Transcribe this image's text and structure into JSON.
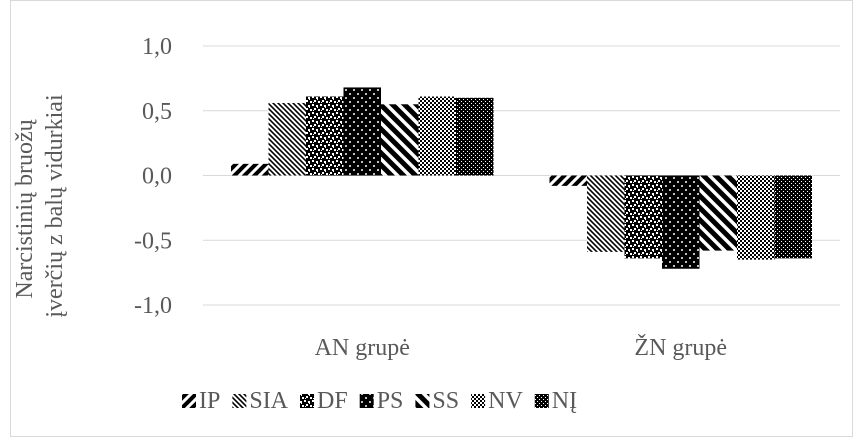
{
  "chart_data": {
    "type": "bar",
    "title": "",
    "xlabel": "",
    "ylabel": "Narcistinių bruožų įverčių z balų vidurkiai",
    "ylabel_lines": [
      "Narcistinių bruožų",
      "įverčių z balų vidurkiai"
    ],
    "ylim": [
      -1.0,
      1.0
    ],
    "yticks": [
      "1,0",
      "0,5",
      "0,0",
      "-0,5",
      "-1,0"
    ],
    "ytick_values": [
      1.0,
      0.5,
      0.0,
      -0.5,
      -1.0
    ],
    "grid": true,
    "legend_position": "bottom",
    "categories": [
      "AN grupė",
      "ŽN grupė"
    ],
    "series": [
      {
        "name": "IP",
        "values": [
          0.09,
          -0.08
        ],
        "pattern": "wide-diagonal"
      },
      {
        "name": "SIA",
        "values": [
          0.56,
          -0.59
        ],
        "pattern": "dense-diagonal"
      },
      {
        "name": "DF",
        "values": [
          0.61,
          -0.64
        ],
        "pattern": "confetti"
      },
      {
        "name": "PS",
        "values": [
          0.68,
          -0.72
        ],
        "pattern": "large-dots"
      },
      {
        "name": "SS",
        "values": [
          0.55,
          -0.58
        ],
        "pattern": "wide-upward-diagonal"
      },
      {
        "name": "NV",
        "values": [
          0.61,
          -0.65
        ],
        "pattern": "checker"
      },
      {
        "name": "NĮ",
        "values": [
          0.6,
          -0.64
        ],
        "pattern": "dotted-grid"
      }
    ],
    "colors": {
      "fill": "#000000",
      "background": "#ffffff",
      "gridline": "#d9d9d9",
      "text": "#595959",
      "border": "#d9d9d9"
    }
  }
}
